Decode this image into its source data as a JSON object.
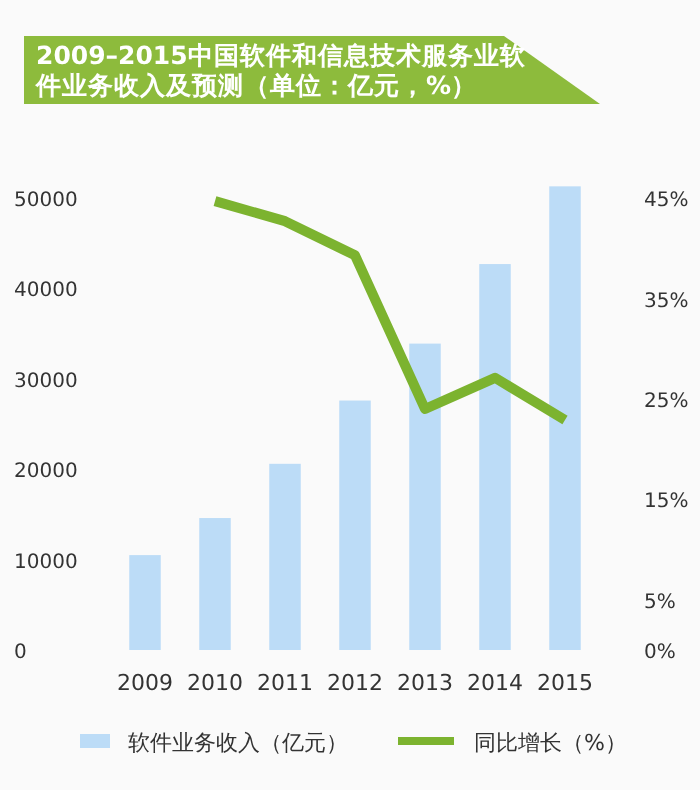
{
  "chart_data": {
    "type": "bar",
    "title": "2009–2015中国软件和信息技术服务业软件业务收入及预测（单位：亿元，%）",
    "categories": [
      "2009",
      "2010",
      "2011",
      "2012",
      "2013",
      "2014",
      "2015"
    ],
    "series": [
      {
        "name": "软件业务收入（亿元）",
        "type": "bar",
        "color": "#bcdcf7",
        "values": [
          10500,
          14600,
          20600,
          27600,
          33900,
          42700,
          51300
        ]
      },
      {
        "name": "同比增长（%）",
        "type": "line",
        "axis": "y2",
        "color": "#7cb32f",
        "values": [
          null,
          44.7,
          42.7,
          39.3,
          24.0,
          27.1,
          22.9
        ]
      }
    ],
    "ylim": [
      0,
      52000
    ],
    "yticks": [
      0,
      10000,
      20000,
      30000,
      40000,
      50000
    ],
    "y2lim": [
      0,
      46.8
    ],
    "y2ticks": [
      {
        "value": 0,
        "label": "0%"
      },
      {
        "value": 5,
        "label": "5%"
      },
      {
        "value": 15,
        "label": "15%"
      },
      {
        "value": 25,
        "label": "25%"
      },
      {
        "value": 35,
        "label": "35%"
      },
      {
        "value": 45,
        "label": "45%"
      }
    ],
    "legend": "bottom",
    "grid": false
  }
}
